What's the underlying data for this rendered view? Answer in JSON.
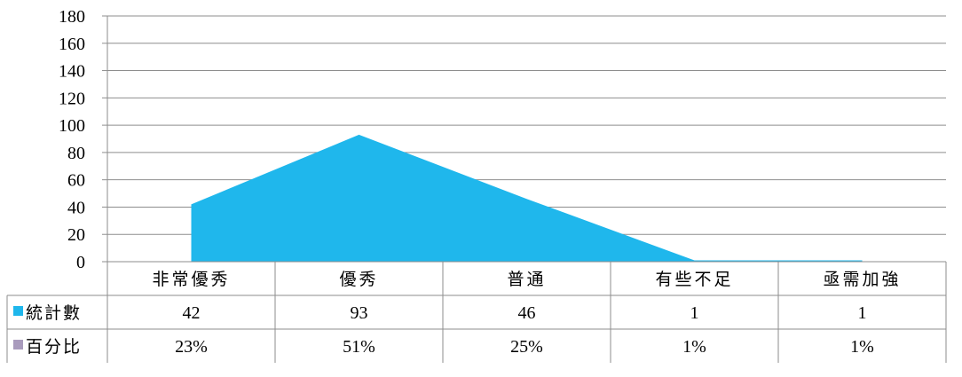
{
  "chart_data": {
    "type": "area",
    "categories": [
      "非常優秀",
      "優秀",
      "普通",
      "有些不足",
      "亟需加強"
    ],
    "series": [
      {
        "name": "統計數",
        "values": [
          42,
          93,
          46,
          1,
          1
        ],
        "color": "#1FB7EC"
      },
      {
        "name": "百分比",
        "values": [
          0.23,
          0.51,
          0.25,
          0.01,
          0.01
        ],
        "color": "#A99BBD"
      }
    ],
    "y_ticks": [
      "0",
      "20",
      "40",
      "60",
      "80",
      "100",
      "120",
      "140",
      "160",
      "180"
    ],
    "ylim": [
      0,
      180
    ],
    "grid": true,
    "data_table": {
      "rows": [
        {
          "label": "統計數",
          "cells": [
            "42",
            "93",
            "46",
            "1",
            "1"
          ],
          "marker_color": "#1FB7EC"
        },
        {
          "label": "百分比",
          "cells": [
            "23%",
            "51%",
            "25%",
            "1%",
            "1%"
          ],
          "marker_color": "#A99BBD"
        }
      ]
    },
    "colors": {
      "gridline": "#8E8E8E",
      "axis": "#8E8E8E",
      "table_border": "#8E8E8E"
    }
  }
}
